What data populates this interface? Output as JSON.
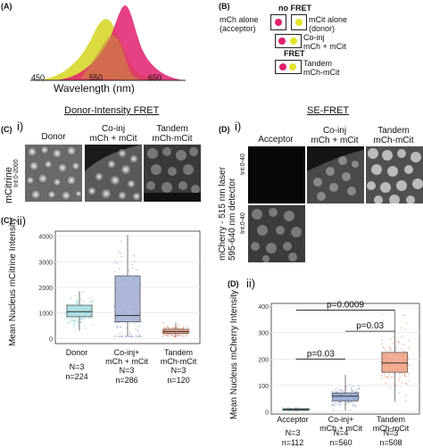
{
  "panel_labels": {
    "a": "(A)",
    "b": "(B)",
    "c": "(C)",
    "c_i": "i)",
    "c_ii": "(C)",
    "c_ii_num": "ii)",
    "d": "(D)",
    "d_i": "i)",
    "d_ii": "(D)",
    "d_ii_num": "ii)"
  },
  "spectrum": {
    "ticks": [
      "450",
      "550",
      "650"
    ],
    "xlabel": "Wavelength (nm)",
    "colors": {
      "mcitrine": "#d7d72c",
      "mcherry": "#e0206e"
    }
  },
  "schematic": {
    "no_fret": "no FRET",
    "mch_alone": [
      "mCh alone",
      "(acceptor)"
    ],
    "mcit_alone": [
      "mCit alone",
      "(donor)"
    ],
    "coinj": [
      "Co-inj",
      "mCh + mCit"
    ],
    "fret": "FRET",
    "tandem": [
      "Tandem",
      "mCh-mCit"
    ],
    "colors": {
      "mch": "#e0206e",
      "mcit": "#e2e22a"
    }
  },
  "donor_fret": {
    "section_title": "Donor-Intensity FRET",
    "cols": [
      "Donor",
      "Co-inj",
      "Tandem"
    ],
    "cols2": [
      "",
      "mCh + mCit",
      "mCh-mCit"
    ],
    "ylabel": "mCitrine",
    "range": "Int:0-2000"
  },
  "se_fret": {
    "section_title": "SE-FRET",
    "cols": [
      "Acceptor",
      "Co-inj",
      "Tandem"
    ],
    "cols2": [
      "",
      "mCh + mCit",
      "mCh-mCit"
    ],
    "ylabel": [
      "mCherry - 515 nm laser",
      "595-640 nm detector"
    ],
    "range": "Int:0-40"
  },
  "counts_c": [
    {
      "N": "N=3",
      "n": "n=224"
    },
    {
      "N": "N=3",
      "n": "n=286"
    },
    {
      "N": "N=3",
      "n": "n=120"
    }
  ],
  "counts_d": [
    {
      "N": "N=3",
      "n": "n=112"
    },
    {
      "N": "N=4",
      "n": "n=560"
    },
    {
      "N": "N=3",
      "n": "n=508"
    }
  ],
  "chart_data": [
    {
      "type": "box",
      "ylabel": "Mean Nucleus mCitrine Intensity",
      "ylim": [
        -200,
        4200
      ],
      "yticks": [
        0,
        1000,
        2000,
        3000,
        4000
      ],
      "categories": [
        "Donor",
        "Co-inj+ mCh + mCit",
        "Tandem mCh-mCit"
      ],
      "boxes": [
        {
          "min": 300,
          "q1": 850,
          "median": 1050,
          "q3": 1300,
          "max": 1850,
          "color": "#9ed9de"
        },
        {
          "min": 80,
          "q1": 650,
          "median": 900,
          "q3": 2450,
          "max": 4050,
          "color": "#9aa8d0"
        },
        {
          "min": 50,
          "q1": 200,
          "median": 270,
          "q3": 360,
          "max": 620,
          "color": "#ef9a7a"
        }
      ]
    },
    {
      "type": "box",
      "ylabel": "Mean Nucleus mCherry Intensity",
      "ylim": [
        -8,
        410
      ],
      "yticks": [
        0,
        100,
        200,
        300,
        400
      ],
      "categories": [
        "Acceptor",
        "Co-inj+ mCh + mCit",
        "Tandem mCh-mCit"
      ],
      "boxes": [
        {
          "min": 3,
          "q1": 7,
          "median": 9,
          "q3": 12,
          "max": 17,
          "color": "#9ed9de"
        },
        {
          "min": 5,
          "q1": 42,
          "median": 60,
          "q3": 72,
          "max": 140,
          "color": "#8fa3cf"
        },
        {
          "min": 40,
          "q1": 150,
          "median": 185,
          "q3": 225,
          "max": 385,
          "color": "#ef9a7a"
        }
      ],
      "annotations": [
        "p=0.03",
        "p=0.03",
        "p=0.0009"
      ]
    }
  ]
}
